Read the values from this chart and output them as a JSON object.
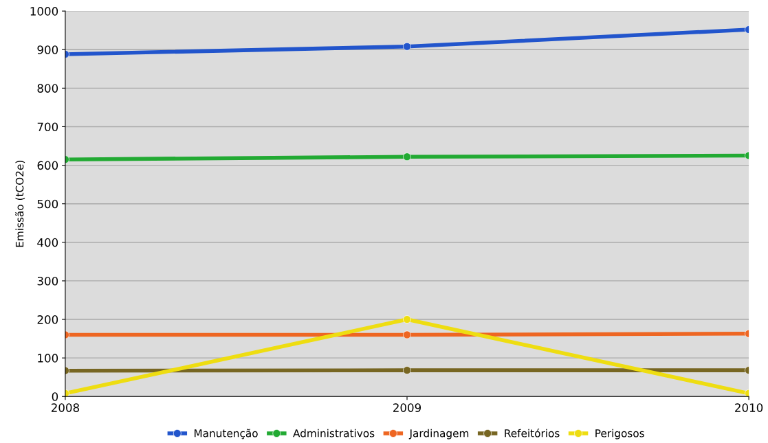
{
  "chart_data": {
    "type": "line",
    "ylabel": "Emissão (tCO2e)",
    "x": [
      2008,
      2009,
      2010
    ],
    "xlim": [
      2008,
      2010
    ],
    "xticks": [
      2008,
      2009,
      2010
    ],
    "ylim": [
      0,
      1000
    ],
    "yticks": [
      0,
      100,
      200,
      300,
      400,
      500,
      600,
      700,
      800,
      900,
      1000
    ],
    "grid": "y",
    "legend": "bottom",
    "marker": "circle",
    "line_style": "solid",
    "series": [
      {
        "name": "Manutenção",
        "color": "#2255cc",
        "values": [
          888,
          908,
          952
        ]
      },
      {
        "name": "Administrativos",
        "color": "#22aa33",
        "values": [
          615,
          622,
          625
        ]
      },
      {
        "name": "Jardinagem",
        "color": "#ee6622",
        "values": [
          160,
          160,
          163
        ]
      },
      {
        "name": "Refeitórios",
        "color": "#776622",
        "values": [
          67,
          68,
          68
        ]
      },
      {
        "name": "Perigosos",
        "color": "#eedd11",
        "values": [
          8,
          200,
          8
        ]
      }
    ]
  }
}
